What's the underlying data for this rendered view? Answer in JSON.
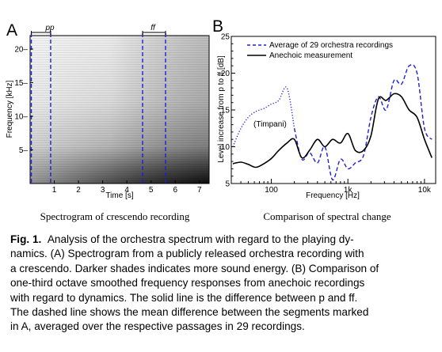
{
  "panel_a": {
    "letter": "A",
    "ylabel": "Frequency [kHz]",
    "xlabel": "Time [s]",
    "yticks": [
      "5",
      "10",
      "15",
      "20"
    ],
    "xticks": [
      "1",
      "2",
      "3",
      "4",
      "5",
      "6",
      "7"
    ],
    "marker_pp": "pp",
    "marker_ff": "ff",
    "subcaption": "Spectrogram of crescendo recording"
  },
  "panel_b": {
    "letter": "B",
    "ylabel": "Level increase from p to ff [dB]",
    "xlabel": "Frequency [Hz]",
    "yticks": [
      "5",
      "10",
      "15",
      "20",
      "25"
    ],
    "xticks": [
      "100",
      "1k",
      "10k"
    ],
    "annotation": "(Timpani)",
    "subcaption": "Comparison of spectral change"
  },
  "chart_data": [
    {
      "type": "heatmap",
      "title": "",
      "xlabel": "Time [s]",
      "ylabel": "Frequency [kHz]",
      "xlim": [
        0,
        7.4
      ],
      "ylim": [
        0,
        22
      ],
      "markers": [
        {
          "label": "pp",
          "x_start": 0.05,
          "x_end": 0.85
        },
        {
          "label": "ff",
          "x_start": 4.65,
          "x_end": 5.6
        }
      ],
      "description_value": "energy increases over time, darker = more energy"
    },
    {
      "type": "line",
      "title": "",
      "xlabel": "Frequency [Hz]",
      "ylabel": "Level increase from p to ff [dB]",
      "xscale": "log",
      "xlim": [
        30,
        14000
      ],
      "ylim": [
        5,
        25
      ],
      "legend": "top-left",
      "series": [
        {
          "name": "Average of 29 orchestra recordings",
          "style": "dashed",
          "color": "#1f1fd6",
          "x": [
            200,
            250,
            315,
            400,
            500,
            630,
            800,
            1000,
            1250,
            1600,
            2000,
            2500,
            3150,
            4000,
            5000,
            6300,
            8000,
            10000,
            12500
          ],
          "y": [
            12.5,
            8.3,
            9.2,
            7.8,
            10.0,
            5.5,
            8.3,
            7.0,
            7.8,
            8.8,
            14.0,
            16.8,
            15.0,
            19.0,
            18.5,
            21.0,
            20.0,
            12.5,
            11.0
          ]
        },
        {
          "name": "Anechoic measurement",
          "style": "solid",
          "color": "#000000",
          "x": [
            31.5,
            40,
            50,
            63,
            80,
            100,
            125,
            160,
            200,
            250,
            315,
            400,
            500,
            630,
            800,
            1000,
            1250,
            1600,
            2000,
            2500,
            3150,
            4000,
            5000,
            6300,
            8000,
            10000,
            12500
          ],
          "y": [
            7.7,
            7.9,
            7.6,
            7.2,
            7.7,
            8.4,
            9.5,
            10.5,
            11.0,
            8.5,
            9.5,
            11.0,
            10.0,
            11.0,
            10.5,
            11.8,
            9.5,
            9.5,
            11.5,
            16.5,
            16.3,
            17.2,
            16.8,
            15.0,
            14.0,
            11.0,
            8.5
          ]
        },
        {
          "name": "",
          "style": "dotted",
          "color": "#1f1fd6",
          "annotation": "(Timpani)",
          "x": [
            31.5,
            40,
            50,
            63,
            80,
            100,
            125,
            160,
            200
          ],
          "y": [
            10.0,
            12.5,
            14.0,
            14.8,
            15.2,
            15.8,
            16.3,
            18.0,
            12.5
          ]
        }
      ]
    }
  ],
  "caption": {
    "fig_label": "Fig. 1.",
    "lines": [
      "Analysis of the orchestra spectrum with regard to the playing dy-",
      "namics. (A) Spectrogram from a publicly released orchestra recording with",
      "a crescendo. Darker shades indicates more sound energy. (B) Comparison of",
      "one-third octave smoothed frequency responses from anechoic recordings",
      "with regard to dynamics. The solid line is the difference between p and ff.",
      "The dashed line shows the mean difference between the segments marked",
      "in A, averaged over the respective passages in 29 recordings."
    ]
  }
}
